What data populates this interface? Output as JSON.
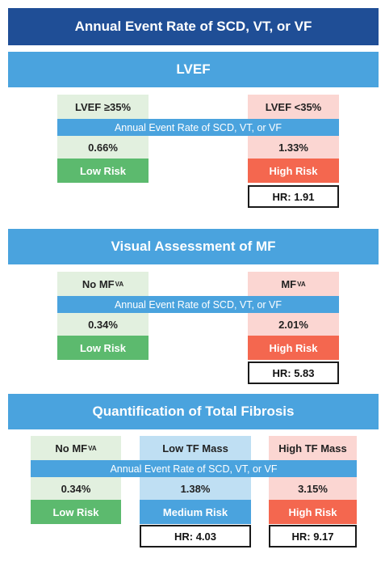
{
  "title": "Annual Event Rate of SCD, VT, or VF",
  "strip_label": "Annual Event Rate of SCD, VT, or VF",
  "sections": [
    {
      "heading": "LVEF",
      "groups": [
        {
          "label": "LVEF ≥35%",
          "rate": "0.66%",
          "risk": "Low Risk"
        },
        {
          "label": "LVEF <35%",
          "rate": "1.33%",
          "risk": "High Risk",
          "hr": "HR: 1.91"
        }
      ]
    },
    {
      "heading": "Visual Assessment of MF",
      "groups": [
        {
          "label": "No MF",
          "label_sub": "VA",
          "rate": "0.34%",
          "risk": "Low Risk"
        },
        {
          "label": "MF",
          "label_sub": "VA",
          "rate": "2.01%",
          "risk": "High Risk",
          "hr": "HR: 5.83"
        }
      ]
    },
    {
      "heading": "Quantification of Total Fibrosis",
      "groups": [
        {
          "label": "No MF",
          "label_sub": "VA",
          "rate": "0.34%",
          "risk": "Low Risk"
        },
        {
          "label": "Low TF Mass",
          "rate": "1.38%",
          "risk": "Medium Risk",
          "hr": "HR: 4.03"
        },
        {
          "label": "High TF Mass",
          "rate": "3.15%",
          "risk": "High Risk",
          "hr": "HR: 9.17"
        }
      ]
    }
  ],
  "colors": {
    "title_bg": "#1f4e96",
    "section_bg": "#4aa3de",
    "low_light": "#e2f0df",
    "low_dark": "#5cba6e",
    "high_light": "#fbd6d2",
    "high_dark": "#f4674f",
    "medium_light": "#bfdff3",
    "medium_dark": "#4aa3de"
  }
}
